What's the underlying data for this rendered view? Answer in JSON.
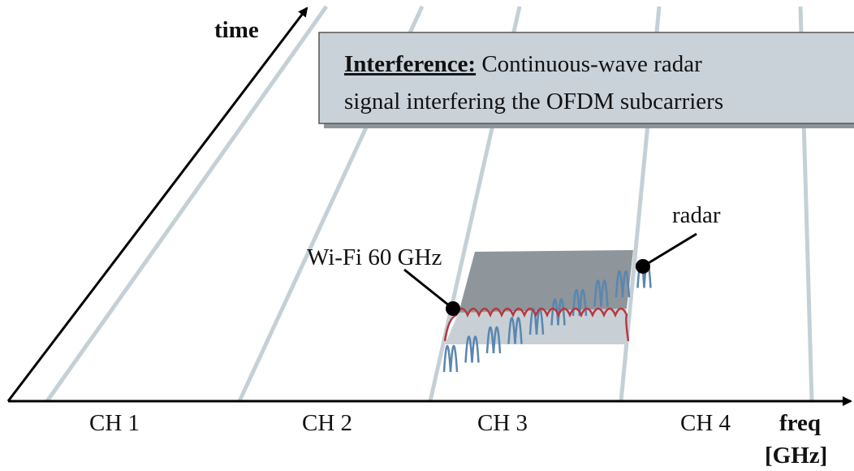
{
  "axes": {
    "time": "time",
    "freq": "freq",
    "freq_unit": "[GHz]"
  },
  "box": {
    "title": "Interference:",
    "line1": "Continuous-wave radar",
    "line2": "signal interfering the OFDM subcarriers"
  },
  "labels": {
    "wifi": "Wi-Fi 60 GHz",
    "radar": "radar"
  },
  "channels": [
    "CH 1",
    "CH 2",
    "CH 3",
    "CH 4"
  ]
}
